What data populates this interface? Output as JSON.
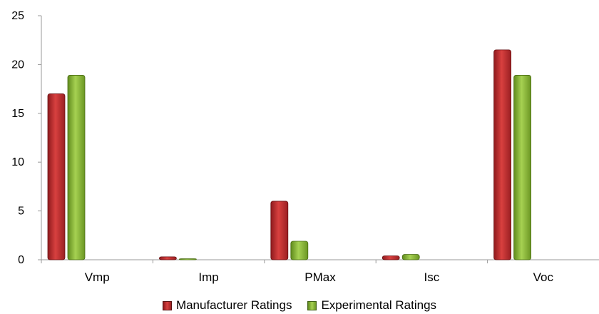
{
  "chart_data": {
    "type": "bar",
    "categories": [
      "Vmp",
      "Imp",
      "PMax",
      "Isc",
      "Voc"
    ],
    "series": [
      {
        "name": "Manufacturer Ratings",
        "values": [
          17.0,
          0.3,
          6.0,
          0.4,
          21.5
        ],
        "color": "#c0282c"
      },
      {
        "name": "Experimental Ratings",
        "values": [
          18.9,
          0.05,
          1.9,
          0.55,
          18.9
        ],
        "color": "#8fc23d"
      }
    ],
    "ylim": [
      0,
      25
    ],
    "yticks": [
      "0",
      "5",
      "10",
      "15",
      "20",
      "25"
    ],
    "grid": false,
    "legend_position": "bottom",
    "title": "",
    "xlabel": "",
    "ylabel": ""
  }
}
